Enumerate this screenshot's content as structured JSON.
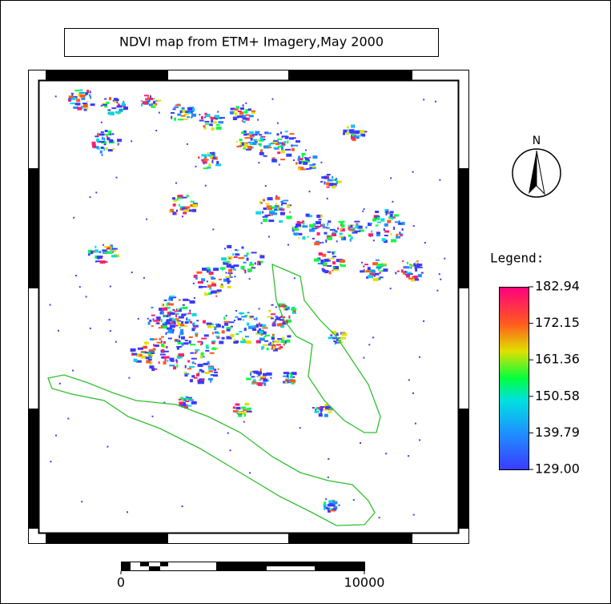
{
  "title": "NDVI map from ETM+ Imagery,May 2000",
  "north_label": "N",
  "legend": {
    "title": "Legend:",
    "ticks": [
      182.94,
      172.15,
      161.36,
      150.58,
      139.79,
      {
        "value": 129,
        "label": "129.00"
      }
    ]
  },
  "scale_bar": {
    "ticks": [
      0,
      10000
    ]
  }
}
